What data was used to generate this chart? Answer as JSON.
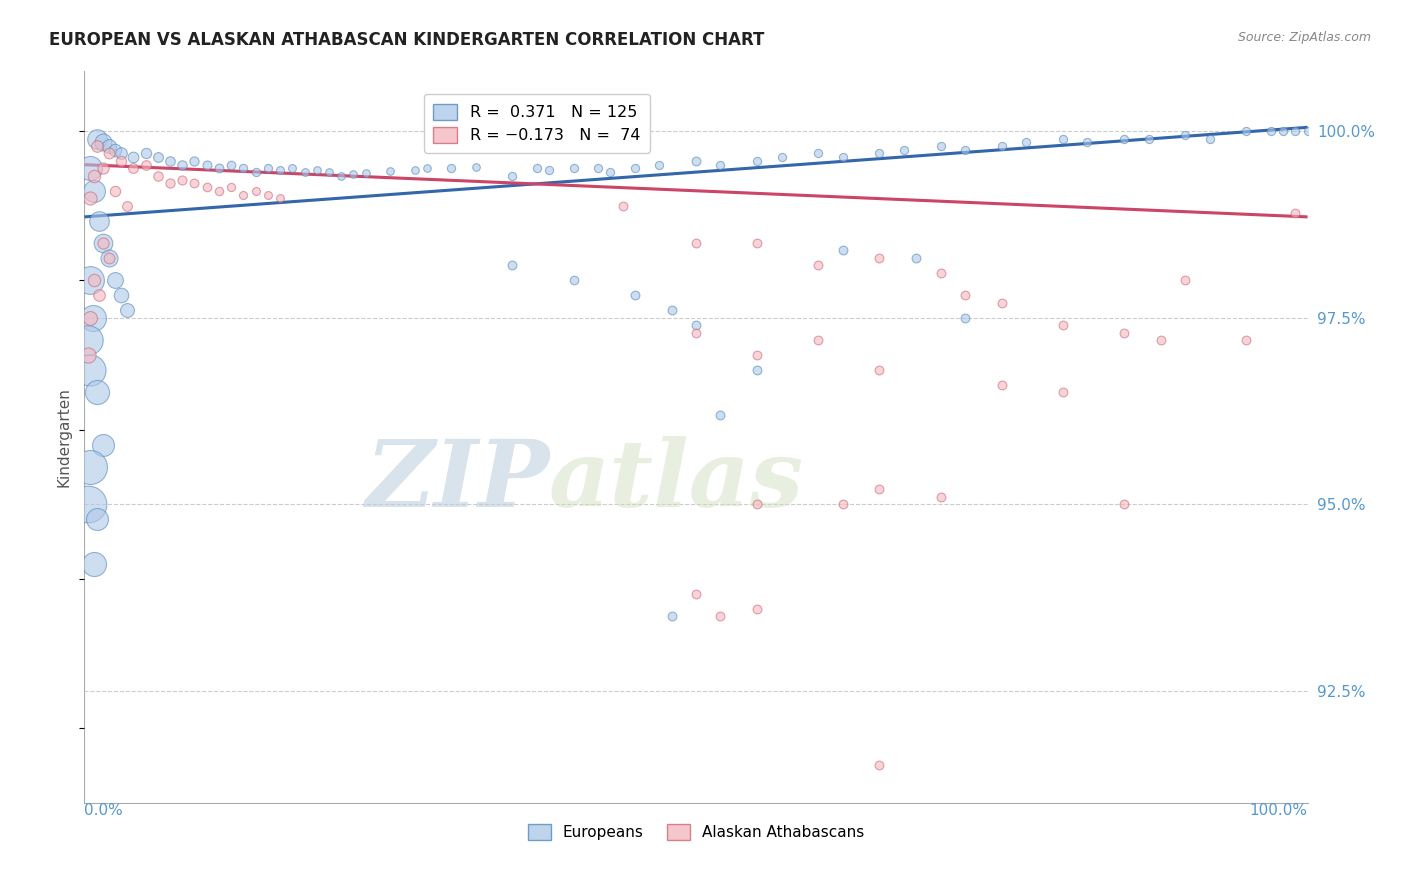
{
  "title": "EUROPEAN VS ALASKAN ATHABASCAN KINDERGARTEN CORRELATION CHART",
  "source": "Source: ZipAtlas.com",
  "ylabel": "Kindergarten",
  "ymin": 91.0,
  "ymax": 100.8,
  "xmin": 0.0,
  "xmax": 100.0,
  "legend_blue_r": "R =  0.371",
  "legend_blue_n": "N = 125",
  "legend_pink_r": "R = −0.173",
  "legend_pink_n": "N =  74",
  "blue_color": "#aec8e8",
  "pink_color": "#f4b8c1",
  "blue_edge_color": "#5588bb",
  "pink_edge_color": "#cc6677",
  "blue_line_color": "#3366aa",
  "pink_line_color": "#cc4466",
  "watermark_zip": "ZIP",
  "watermark_atlas": "atlas",
  "ytick_positions": [
    92.5,
    95.0,
    97.5,
    100.0
  ],
  "ytick_labels": [
    "92.5%",
    "95.0%",
    "97.5%",
    "100.0%"
  ],
  "tick_label_color": "#5599cc",
  "grid_color": "#cccccc",
  "background_color": "#ffffff",
  "blue_trend": [
    0,
    100,
    98.85,
    100.05
  ],
  "pink_trend": [
    0,
    100,
    99.55,
    98.85
  ],
  "blue_points": [
    [
      1.0,
      99.9,
      200
    ],
    [
      1.5,
      99.85,
      150
    ],
    [
      2.0,
      99.8,
      100
    ],
    [
      2.5,
      99.75,
      80
    ],
    [
      3.0,
      99.7,
      70
    ],
    [
      4.0,
      99.65,
      60
    ],
    [
      5.0,
      99.7,
      55
    ],
    [
      6.0,
      99.65,
      50
    ],
    [
      7.0,
      99.6,
      48
    ],
    [
      8.0,
      99.55,
      46
    ],
    [
      9.0,
      99.6,
      44
    ],
    [
      10.0,
      99.55,
      42
    ],
    [
      11.0,
      99.5,
      40
    ],
    [
      12.0,
      99.55,
      38
    ],
    [
      13.0,
      99.5,
      36
    ],
    [
      14.0,
      99.45,
      35
    ],
    [
      15.0,
      99.5,
      34
    ],
    [
      16.0,
      99.48,
      33
    ],
    [
      17.0,
      99.5,
      32
    ],
    [
      18.0,
      99.45,
      31
    ],
    [
      19.0,
      99.48,
      30
    ],
    [
      20.0,
      99.45,
      30
    ],
    [
      0.5,
      99.5,
      300
    ],
    [
      0.8,
      99.2,
      250
    ],
    [
      1.2,
      98.8,
      200
    ],
    [
      1.5,
      98.5,
      180
    ],
    [
      2.0,
      98.3,
      150
    ],
    [
      2.5,
      98.0,
      130
    ],
    [
      3.0,
      97.8,
      110
    ],
    [
      3.5,
      97.6,
      100
    ],
    [
      0.5,
      98.0,
      400
    ],
    [
      0.7,
      97.5,
      350
    ],
    [
      0.5,
      96.8,
      500
    ],
    [
      0.3,
      97.2,
      450
    ],
    [
      1.0,
      96.5,
      300
    ],
    [
      1.5,
      95.8,
      250
    ],
    [
      0.5,
      95.5,
      600
    ],
    [
      0.3,
      95.0,
      700
    ],
    [
      1.0,
      94.8,
      250
    ],
    [
      0.8,
      94.2,
      300
    ],
    [
      21.0,
      99.4,
      30
    ],
    [
      22.0,
      99.42,
      30
    ],
    [
      23.0,
      99.44,
      30
    ],
    [
      25.0,
      99.46,
      30
    ],
    [
      27.0,
      99.48,
      30
    ],
    [
      28.0,
      99.5,
      30
    ],
    [
      30.0,
      99.5,
      35
    ],
    [
      32.0,
      99.52,
      30
    ],
    [
      35.0,
      99.4,
      35
    ],
    [
      37.0,
      99.5,
      35
    ],
    [
      38.0,
      99.48,
      35
    ],
    [
      40.0,
      99.5,
      35
    ],
    [
      42.0,
      99.5,
      35
    ],
    [
      43.0,
      99.45,
      35
    ],
    [
      45.0,
      99.5,
      35
    ],
    [
      47.0,
      99.55,
      35
    ],
    [
      50.0,
      99.6,
      40
    ],
    [
      52.0,
      99.55,
      35
    ],
    [
      55.0,
      99.6,
      35
    ],
    [
      57.0,
      99.65,
      35
    ],
    [
      60.0,
      99.7,
      35
    ],
    [
      62.0,
      99.65,
      35
    ],
    [
      65.0,
      99.7,
      35
    ],
    [
      67.0,
      99.75,
      35
    ],
    [
      70.0,
      99.8,
      35
    ],
    [
      72.0,
      99.75,
      35
    ],
    [
      75.0,
      99.8,
      35
    ],
    [
      77.0,
      99.85,
      35
    ],
    [
      80.0,
      99.9,
      35
    ],
    [
      82.0,
      99.85,
      35
    ],
    [
      85.0,
      99.9,
      35
    ],
    [
      87.0,
      99.9,
      35
    ],
    [
      90.0,
      99.95,
      35
    ],
    [
      92.0,
      99.9,
      35
    ],
    [
      95.0,
      100.0,
      35
    ],
    [
      97.0,
      100.0,
      35
    ],
    [
      98.0,
      100.0,
      35
    ],
    [
      99.0,
      100.0,
      35
    ],
    [
      100.0,
      100.0,
      35
    ],
    [
      35.0,
      98.2,
      40
    ],
    [
      40.0,
      98.0,
      38
    ],
    [
      45.0,
      97.8,
      40
    ],
    [
      48.0,
      97.6,
      40
    ],
    [
      50.0,
      97.4,
      40
    ],
    [
      55.0,
      96.8,
      40
    ],
    [
      62.0,
      98.4,
      40
    ],
    [
      68.0,
      98.3,
      40
    ],
    [
      72.0,
      97.5,
      40
    ],
    [
      52.0,
      96.2,
      40
    ],
    [
      48.0,
      93.5,
      40
    ]
  ],
  "pink_points": [
    [
      2.0,
      99.7,
      60
    ],
    [
      3.0,
      99.6,
      55
    ],
    [
      4.0,
      99.5,
      50
    ],
    [
      5.0,
      99.55,
      48
    ],
    [
      6.0,
      99.4,
      46
    ],
    [
      7.0,
      99.3,
      44
    ],
    [
      8.0,
      99.35,
      42
    ],
    [
      9.0,
      99.3,
      40
    ],
    [
      10.0,
      99.25,
      38
    ],
    [
      11.0,
      99.2,
      36
    ],
    [
      12.0,
      99.25,
      35
    ],
    [
      13.0,
      99.15,
      34
    ],
    [
      14.0,
      99.2,
      33
    ],
    [
      15.0,
      99.15,
      32
    ],
    [
      16.0,
      99.1,
      31
    ],
    [
      1.0,
      99.8,
      70
    ],
    [
      1.5,
      99.5,
      65
    ],
    [
      0.8,
      99.4,
      80
    ],
    [
      0.5,
      99.1,
      90
    ],
    [
      2.5,
      99.2,
      55
    ],
    [
      3.5,
      99.0,
      50
    ],
    [
      1.5,
      98.5,
      65
    ],
    [
      2.0,
      98.3,
      60
    ],
    [
      0.8,
      98.0,
      80
    ],
    [
      1.2,
      97.8,
      70
    ],
    [
      0.5,
      97.5,
      100
    ],
    [
      0.3,
      97.0,
      120
    ],
    [
      44.0,
      99.0,
      40
    ],
    [
      50.0,
      98.5,
      40
    ],
    [
      55.0,
      98.5,
      40
    ],
    [
      60.0,
      98.2,
      40
    ],
    [
      65.0,
      98.3,
      40
    ],
    [
      70.0,
      98.1,
      40
    ],
    [
      72.0,
      97.8,
      40
    ],
    [
      75.0,
      97.7,
      40
    ],
    [
      80.0,
      97.4,
      40
    ],
    [
      85.0,
      97.3,
      40
    ],
    [
      88.0,
      97.2,
      40
    ],
    [
      90.0,
      98.0,
      40
    ],
    [
      95.0,
      97.2,
      40
    ],
    [
      99.0,
      98.9,
      40
    ],
    [
      50.0,
      97.3,
      40
    ],
    [
      55.0,
      97.0,
      40
    ],
    [
      60.0,
      97.2,
      40
    ],
    [
      65.0,
      96.8,
      40
    ],
    [
      75.0,
      96.6,
      40
    ],
    [
      80.0,
      96.5,
      40
    ],
    [
      55.0,
      95.0,
      40
    ],
    [
      62.0,
      95.0,
      40
    ],
    [
      70.0,
      95.1,
      40
    ],
    [
      50.0,
      93.8,
      40
    ],
    [
      55.0,
      93.6,
      40
    ],
    [
      65.0,
      95.2,
      40
    ],
    [
      85.0,
      95.0,
      40
    ],
    [
      52.0,
      93.5,
      40
    ],
    [
      65.0,
      91.5,
      40
    ]
  ]
}
